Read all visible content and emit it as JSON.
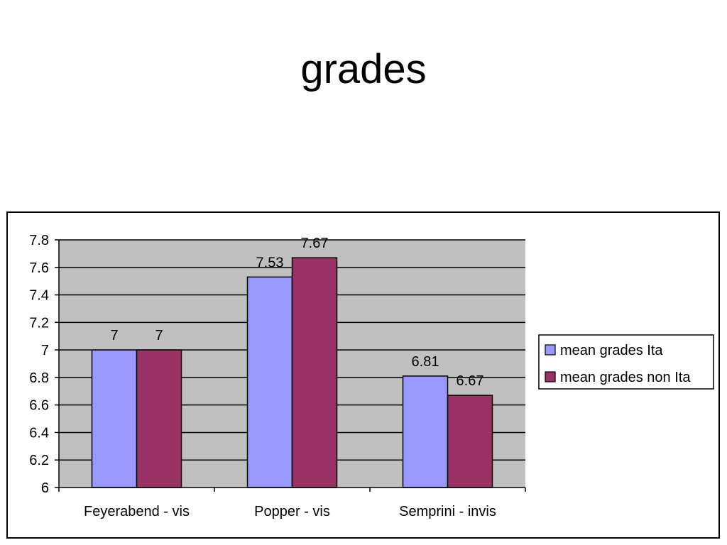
{
  "slide": {
    "title": "grades"
  },
  "chart_data": {
    "type": "bar",
    "title": "",
    "xlabel": "",
    "ylabel": "",
    "categories": [
      "Feyerabend - vis",
      "Popper - vis",
      "Semprini - invis"
    ],
    "series": [
      {
        "name": "mean grades Ita",
        "values": [
          7,
          7.53,
          6.81
        ],
        "color": "#9999ff"
      },
      {
        "name": "mean grades non Ita",
        "values": [
          7,
          7.67,
          6.67
        ],
        "color": "#993366"
      }
    ],
    "ylim": [
      6,
      7.8
    ],
    "yticks": [
      6,
      6.2,
      6.4,
      6.6,
      6.8,
      7,
      7.2,
      7.4,
      7.6,
      7.8
    ],
    "ytick_labels": [
      "6",
      "6.2",
      "6.4",
      "6.6",
      "6.8",
      "7",
      "7.2",
      "7.4",
      "7.6",
      "7.8"
    ],
    "data_labels": [
      [
        "7",
        "7.53",
        "6.81"
      ],
      [
        "7",
        "7.67",
        "6.67"
      ]
    ],
    "grid": true,
    "plot_background": "#c0c0c0",
    "legend_position": "right"
  }
}
